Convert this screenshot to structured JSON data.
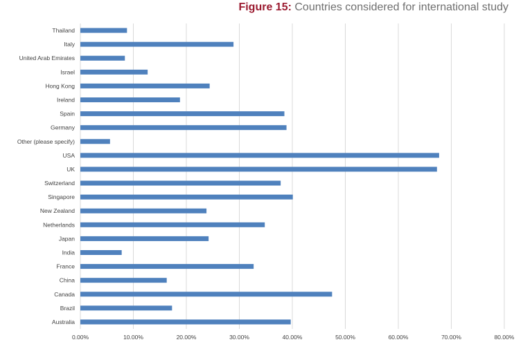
{
  "title": {
    "lead": "Figure 15:",
    "text": "Countries considered for international study"
  },
  "colors": {
    "bar": "#4f81bd",
    "title_lead": "#9b1b30",
    "title_text": "#6f6f6f",
    "grid": "#d9d9d9"
  },
  "chart_data": {
    "type": "bar",
    "orientation": "horizontal",
    "title": "Countries considered for international study",
    "xlabel": "",
    "ylabel": "",
    "xlim": [
      0,
      0.8
    ],
    "grid": true,
    "legend": "none",
    "x_ticks": [
      "0.00%",
      "10.00%",
      "20.00%",
      "30.00%",
      "40.00%",
      "50.00%",
      "60.00%",
      "70.00%",
      "80.00%"
    ],
    "categories": [
      "Thailand",
      "Italy",
      "United Arab Emirates",
      "Israel",
      "Hong Kong",
      "Ireland",
      "Spain",
      "Germany",
      "Other (please specify)",
      "USA",
      "UK",
      "Switzerland",
      "Singapore",
      "New Zealand",
      "Netherlands",
      "Japan",
      "India",
      "France",
      "China",
      "Canada",
      "Brazil",
      "Australia"
    ],
    "values": [
      0.088,
      0.289,
      0.084,
      0.127,
      0.244,
      0.188,
      0.385,
      0.389,
      0.056,
      0.677,
      0.673,
      0.378,
      0.401,
      0.238,
      0.348,
      0.242,
      0.078,
      0.327,
      0.163,
      0.475,
      0.173,
      0.397
    ]
  }
}
